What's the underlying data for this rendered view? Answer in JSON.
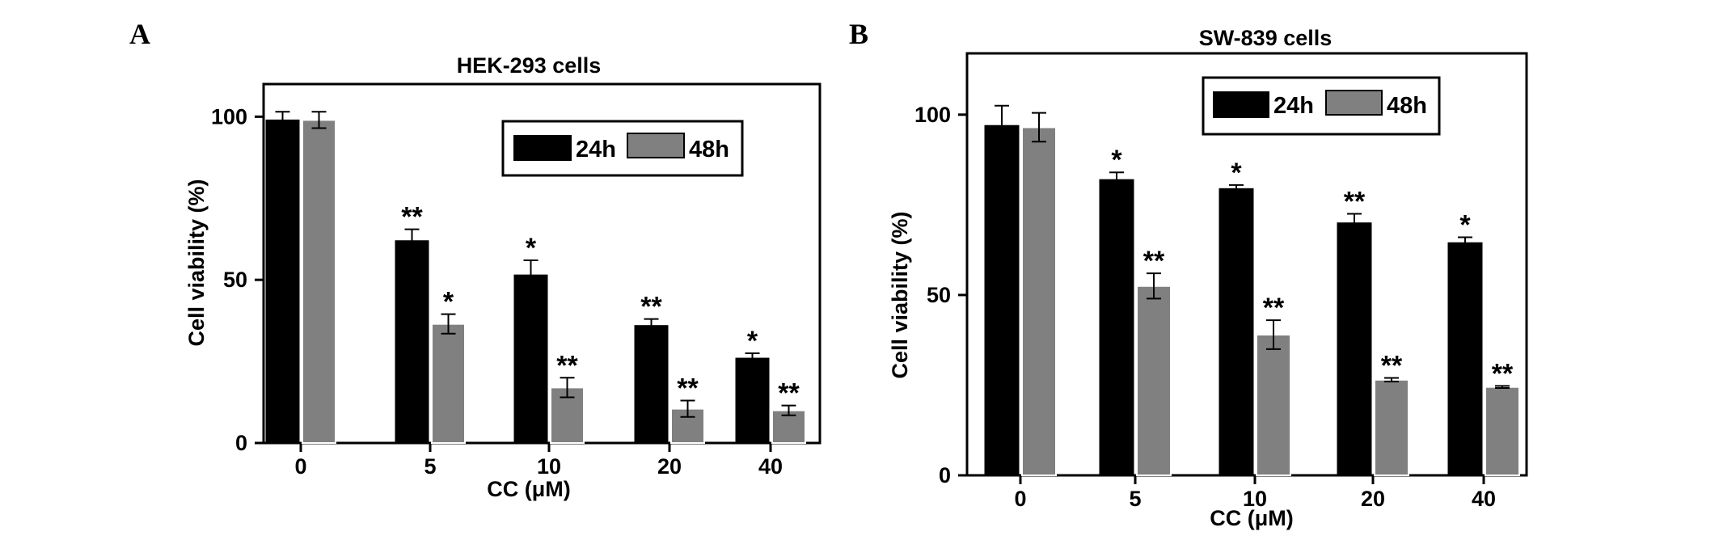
{
  "chart_data": [
    {
      "type": "bar",
      "panel": "A",
      "title": "HEK-293 cells",
      "xlabel": "CC (μM)",
      "ylabel": "Cell viability (%)",
      "categories": [
        "0",
        "5",
        "10",
        "20",
        "40"
      ],
      "yticks": [
        "0",
        "50",
        "100"
      ],
      "ylim": [
        0,
        110
      ],
      "series": [
        {
          "name": "24h",
          "color": "#000000",
          "values": [
            99,
            62,
            51.5,
            36,
            26
          ],
          "errors": [
            2.5,
            3.5,
            4.5,
            2,
            1.5
          ],
          "significance": [
            "",
            "**",
            "*",
            "**",
            "*"
          ]
        },
        {
          "name": "48h",
          "color": "#808080",
          "values": [
            99,
            36.5,
            17,
            10.5,
            10
          ],
          "errors": [
            2.5,
            3,
            3,
            2.5,
            1.5
          ],
          "significance": [
            "",
            "*",
            "**",
            "**",
            "**"
          ]
        }
      ],
      "legend": "top-right",
      "grid": false
    },
    {
      "type": "bar",
      "panel": "B",
      "title": "SW-839 cells",
      "xlabel": "CC (μM)",
      "ylabel": "Cell viability (%)",
      "categories": [
        "0",
        "5",
        "10",
        "20",
        "40"
      ],
      "yticks": [
        "0",
        "50",
        "100"
      ],
      "ylim": [
        0,
        117
      ],
      "series": [
        {
          "name": "24h",
          "color": "#000000",
          "values": [
            97,
            82,
            79.5,
            70,
            64.5
          ],
          "errors": [
            5.5,
            2,
            1,
            2.5,
            1.5
          ],
          "significance": [
            "",
            "*",
            "*",
            "**",
            "*"
          ]
        },
        {
          "name": "48h",
          "color": "#808080",
          "values": [
            96.5,
            52.5,
            39,
            26.5,
            24.5
          ],
          "errors": [
            4,
            3.5,
            4,
            0.5,
            0.3
          ],
          "significance": [
            "",
            "**",
            "**",
            "**",
            "**"
          ]
        }
      ],
      "legend": "top-right",
      "grid": false
    }
  ]
}
